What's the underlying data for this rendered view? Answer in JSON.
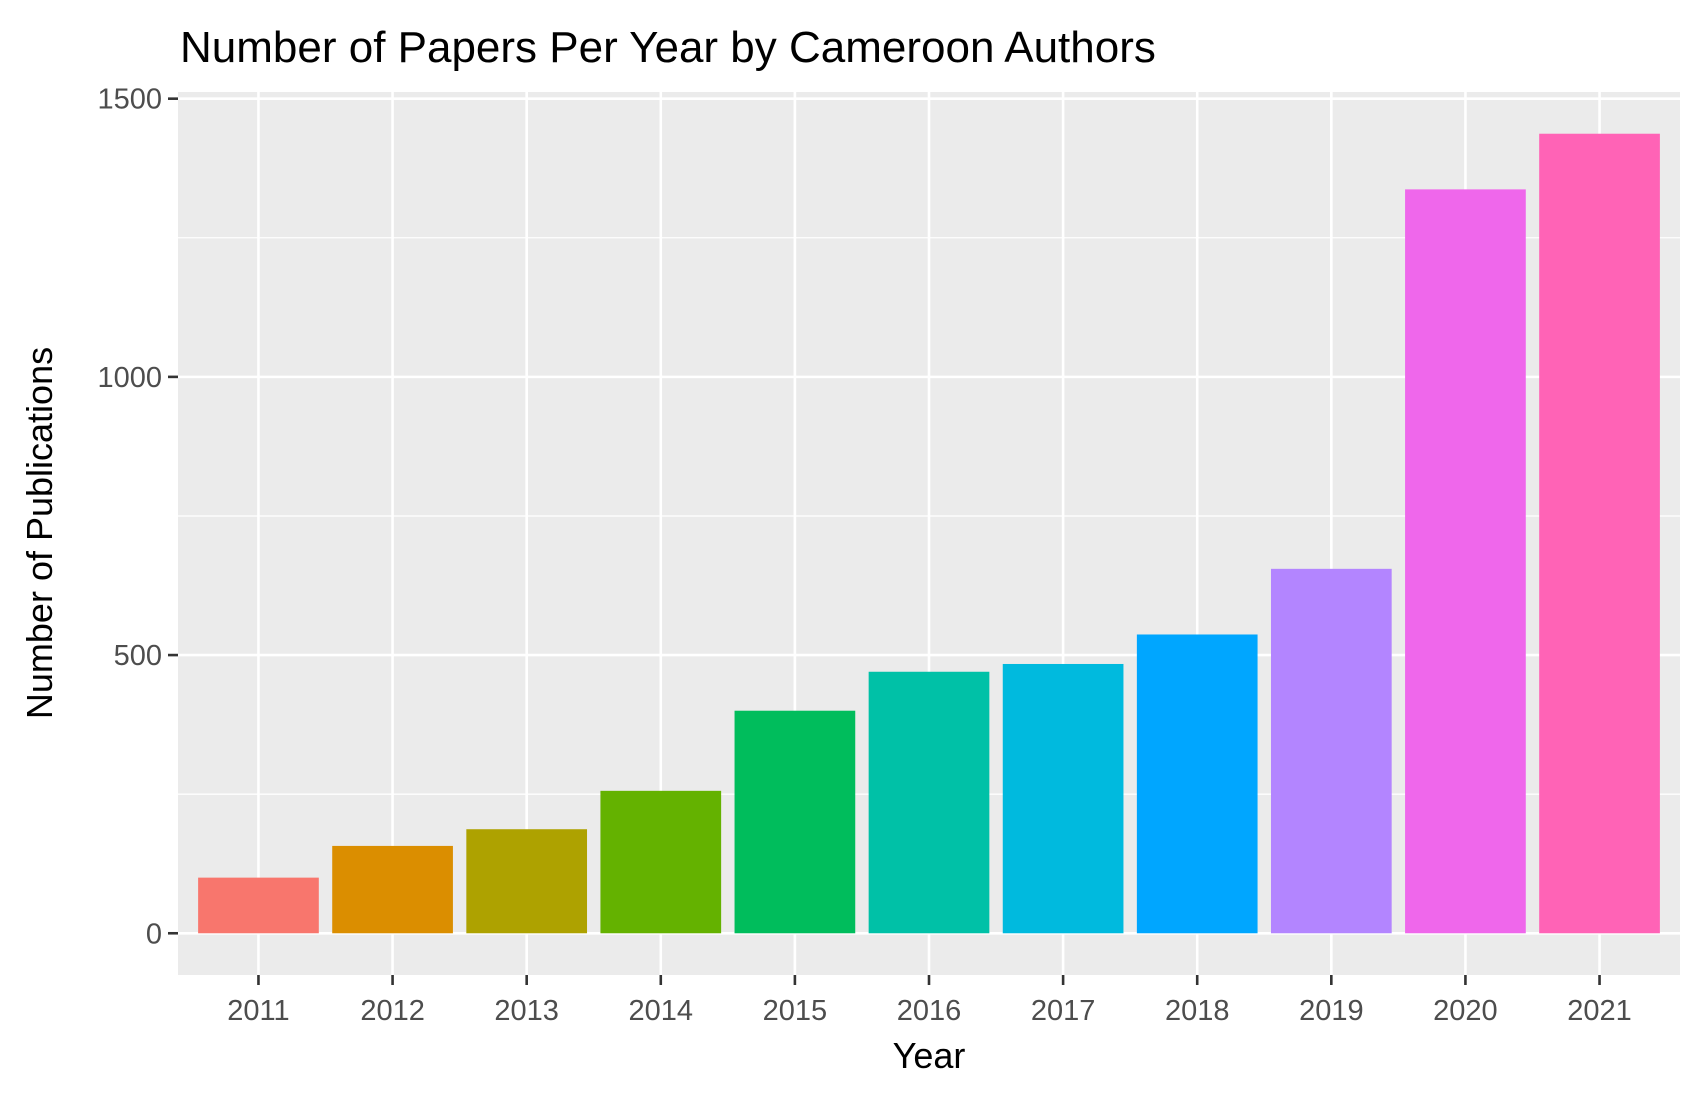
{
  "chart_data": {
    "type": "bar",
    "title": "Number of Papers Per Year by Cameroon Authors",
    "xlabel": "Year",
    "ylabel": "Number of Publications",
    "categories": [
      "2011",
      "2012",
      "2013",
      "2014",
      "2015",
      "2016",
      "2017",
      "2018",
      "2019",
      "2020",
      "2021"
    ],
    "values": [
      100,
      157,
      187,
      256,
      400,
      470,
      484,
      537,
      655,
      1337,
      1437
    ],
    "colors": [
      "#F8766D",
      "#DB8E00",
      "#AEA200",
      "#64B200",
      "#00BD5C",
      "#00C1A7",
      "#00BADE",
      "#00A6FF",
      "#B385FF",
      "#EF67EB",
      "#FF63B6"
    ],
    "ylim": [
      -75,
      1512
    ],
    "yticks": [
      0,
      500,
      1000,
      1500
    ],
    "ytick_labels": [
      "0",
      "500",
      "1000",
      "1500"
    ],
    "grid": true,
    "legend": "none",
    "panel_background": "#EBEBEB",
    "grid_color": "#FFFFFF"
  }
}
